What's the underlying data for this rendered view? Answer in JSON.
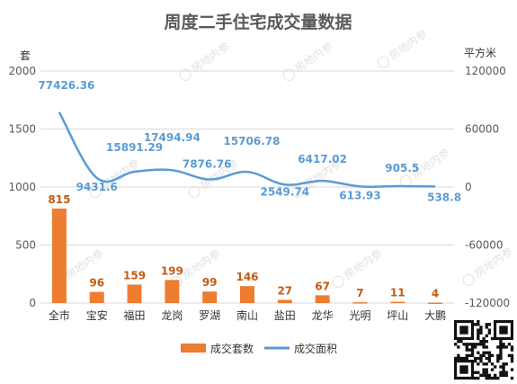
{
  "chart_data": {
    "type": "bar+line",
    "title": "周度二手住宅成交量数据",
    "y_left_label": "套",
    "y_right_label": "平方米",
    "y_left_range": [
      0,
      2000
    ],
    "y_right_range": [
      -120000,
      120000
    ],
    "y_left_ticks": [
      "0",
      "500",
      "1000",
      "1500",
      "2000"
    ],
    "y_right_ticks": [
      "-120000",
      "-60000",
      "0",
      "60000",
      "120000"
    ],
    "categories": [
      "全市",
      "宝安",
      "福田",
      "龙岗",
      "罗湖",
      "南山",
      "盐田",
      "龙华",
      "光明",
      "坪山",
      "大鹏"
    ],
    "series": [
      {
        "name": "成交套数",
        "type": "bar",
        "axis": "left",
        "color": "#ed7d31",
        "values": [
          815,
          96,
          159,
          199,
          99,
          146,
          27,
          67,
          7,
          11,
          4
        ],
        "labels": [
          "815",
          "96",
          "159",
          "199",
          "99",
          "146",
          "27",
          "67",
          "7",
          "11",
          "4"
        ]
      },
      {
        "name": "成交面积",
        "type": "line",
        "axis": "right",
        "color": "#5b9bd5",
        "values": [
          77426.36,
          9431.6,
          15891.29,
          17494.94,
          7876.76,
          15706.78,
          2549.74,
          6417.02,
          613.93,
          905.5,
          538.8
        ],
        "labels": [
          "77426.36",
          "9431.6",
          "15891.29",
          "17494.94",
          "7876.76",
          "15706.78",
          "2549.74",
          "6417.02",
          "613.93",
          "905.5",
          "538.8"
        ]
      }
    ],
    "legend": {
      "position": "bottom"
    },
    "grid": true
  },
  "watermark": "房地内参"
}
